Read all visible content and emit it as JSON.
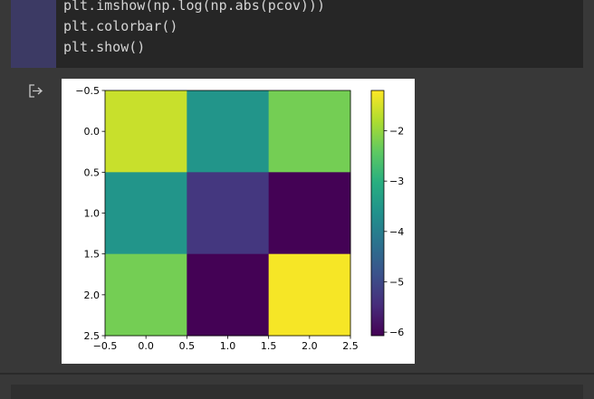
{
  "code": [
    "plt.imshow(np.log(np.abs(pcov)))",
    "plt.colorbar()",
    "plt.show()"
  ],
  "chart_data": {
    "type": "heatmap",
    "values": [
      [
        -1.6,
        -3.55,
        -2.25
      ],
      [
        -3.55,
        -5.3,
        -6.05
      ],
      [
        -2.25,
        -6.05,
        -1.25
      ]
    ],
    "colormap": [
      "#440154",
      "#472d7b",
      "#3b528b",
      "#2c728e",
      "#21918c",
      "#28ae80",
      "#5ec962",
      "#addc30",
      "#fde725"
    ],
    "xlim": [
      -0.5,
      2.5
    ],
    "xticks": [
      {
        "value": -0.5,
        "label": "−0.5"
      },
      {
        "value": 0,
        "label": "0.0"
      },
      0.5,
      {
        "value": 1,
        "label": "1.0"
      },
      1.5,
      {
        "value": 2,
        "label": "2.0"
      },
      2.5
    ],
    "ylim": [
      2.5,
      -0.5
    ],
    "yticks": [
      {
        "value": -0.5,
        "label": "−0.5"
      },
      {
        "value": 0,
        "label": "0.0"
      },
      0.5,
      {
        "value": 1,
        "label": "1.0"
      },
      1.5,
      {
        "value": 2,
        "label": "2.0"
      },
      2.5
    ],
    "clim": [
      -6.07,
      -1.2
    ],
    "cticks": [
      {
        "value": -2,
        "label": "−2"
      },
      {
        "value": -3,
        "label": "−3"
      },
      {
        "value": -4,
        "label": "−4"
      },
      {
        "value": -5,
        "label": "−5"
      },
      {
        "value": -6,
        "label": "−6"
      }
    ]
  }
}
